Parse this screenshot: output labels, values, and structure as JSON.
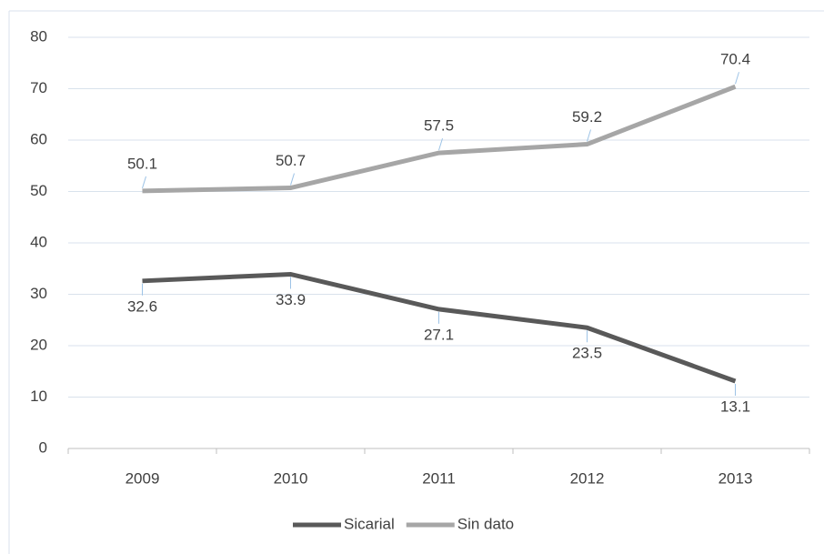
{
  "chart_data": {
    "type": "line",
    "categories": [
      "2009",
      "2010",
      "2011",
      "2012",
      "2013"
    ],
    "series": [
      {
        "name": "Sicarial",
        "color": "#595959",
        "values": [
          32.6,
          33.9,
          27.1,
          23.5,
          13.1
        ]
      },
      {
        "name": "Sin dato",
        "color": "#a6a6a6",
        "values": [
          50.1,
          50.7,
          57.5,
          59.2,
          70.4
        ]
      }
    ],
    "ylim": [
      0,
      80
    ],
    "yticks": [
      0,
      10,
      20,
      30,
      40,
      50,
      60,
      70,
      80
    ],
    "grid": true,
    "legend": "bottom"
  }
}
